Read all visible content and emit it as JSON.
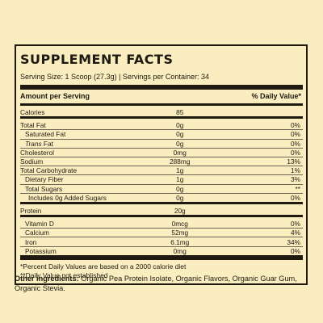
{
  "panel": {
    "title": "SUPPLEMENT FACTS",
    "serving": "Serving Size: 1 Scoop (27.3g) | Servings per Container: 34",
    "header_left": "Amount per Serving",
    "header_right": "% Daily Value*"
  },
  "groups": [
    [
      {
        "name": "Calories",
        "amount": "85",
        "dv": "",
        "indent": 0
      }
    ],
    [
      {
        "name": "Total Fat",
        "amount": "0g",
        "dv": "0%",
        "indent": 0
      },
      {
        "name": "Saturated Fat",
        "amount": "0g",
        "dv": "0%",
        "indent": 1
      },
      {
        "name": "Trans Fat",
        "amount": "0g",
        "dv": "0%",
        "indent": 1,
        "italic_word": "Trans"
      },
      {
        "name": "Cholesterol",
        "amount": "0mg",
        "dv": "0%",
        "indent": 0
      },
      {
        "name": "Sodium",
        "amount": "288mg",
        "dv": "13%",
        "indent": 0
      },
      {
        "name": "Total Carbohydrate",
        "amount": "1g",
        "dv": "1%",
        "indent": 0
      },
      {
        "name": "Dietary Fiber",
        "amount": "1g",
        "dv": "3%",
        "indent": 1
      },
      {
        "name": "Total Sugars",
        "amount": "0g",
        "dv": "**",
        "indent": 1
      },
      {
        "name": "Includes 0g Added Sugars",
        "amount": "0g",
        "dv": "0%",
        "indent": 2
      }
    ],
    [
      {
        "name": "Protein",
        "amount": "20g",
        "dv": "",
        "indent": 0
      }
    ],
    [
      {
        "name": "Vitamin D",
        "amount": "0mcg",
        "dv": "0%",
        "indent": 1
      },
      {
        "name": "Calcium",
        "amount": "52mg",
        "dv": "4%",
        "indent": 1
      },
      {
        "name": "Iron",
        "amount": "6.1mg",
        "dv": "34%",
        "indent": 1
      },
      {
        "name": "Potassium",
        "amount": "0mg",
        "dv": "0%",
        "indent": 1
      }
    ]
  ],
  "footnotes": [
    "*Percent Daily Values are based on a 2000 calorie diet",
    "**Daily Value not established"
  ],
  "ingredients": {
    "label": "Other ingredients:",
    "text": " Organic Pea Protein Isolate, Organic Flavors, Organic Guar Gum, Organic Stevia."
  }
}
